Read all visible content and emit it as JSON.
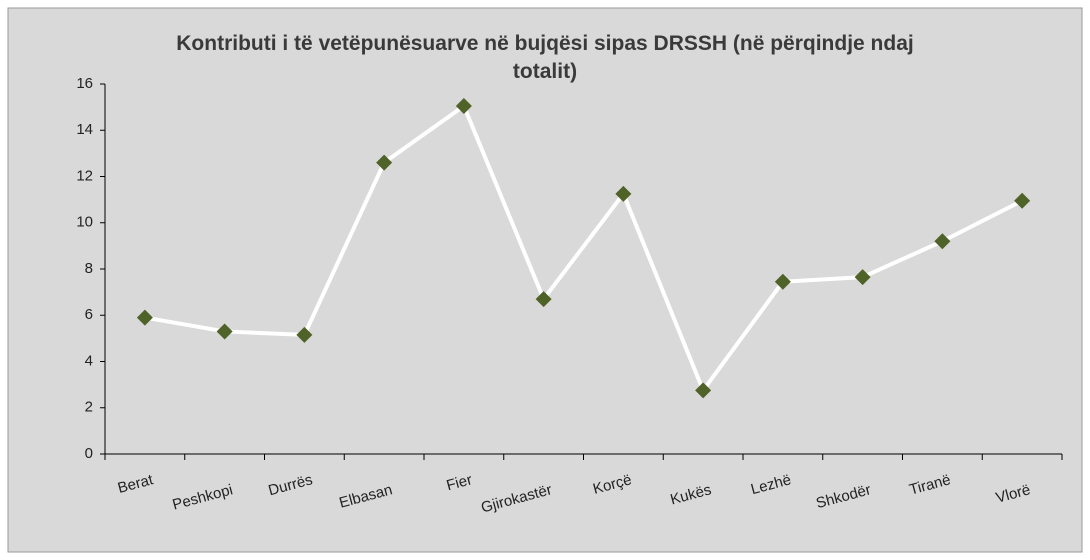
{
  "chart_data": {
    "type": "line",
    "title": "Kontributi i të vetëpunësuarve në bujqësi sipas DRSSH (në përqindje ndaj totalit)",
    "categories": [
      "Berat",
      "Peshkopi",
      "Durrës",
      "Elbasan",
      "Fier",
      "Gjirokastër",
      "Korçë",
      "Kukës",
      "Lezhë",
      "Shkodër",
      "Tiranë",
      "Vlorë"
    ],
    "series": [
      {
        "name": "DRSSH",
        "color": "#ffffff",
        "marker_color": "#4f6228",
        "values": [
          5.9,
          5.3,
          5.15,
          12.6,
          15.05,
          6.7,
          11.25,
          2.75,
          7.45,
          7.65,
          9.2,
          10.95
        ]
      }
    ],
    "ylim": [
      0,
      16
    ],
    "yticks": [
      0,
      2,
      4,
      6,
      8,
      10,
      12,
      14,
      16
    ],
    "grid": false,
    "legend": false
  }
}
